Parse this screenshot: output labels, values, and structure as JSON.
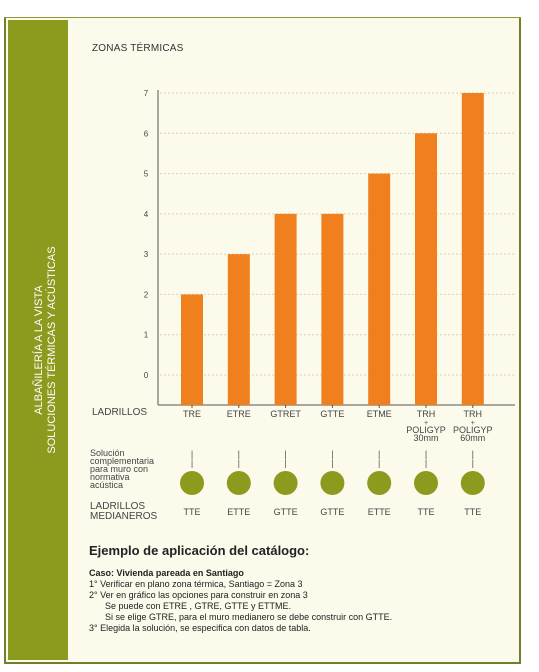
{
  "sidebar": {
    "line1": "ALBAÑILERÍA A LA VISTA",
    "line2": "SOLUCIONES TÉRMICAS Y ACÚSTICAS"
  },
  "chart_data": {
    "type": "bar",
    "title": "ZONAS TÉRMICAS",
    "xlabel": "LADRILLOS",
    "categories": [
      "TRE",
      "ETRE",
      "GTRET",
      "GTTE",
      "ETME",
      "TRH + POLIGYP 30mm",
      "TRH + POLIGYP 60mm"
    ],
    "category_lines": [
      [
        "TRE"
      ],
      [
        "ETRE"
      ],
      [
        "GTRET"
      ],
      [
        "GTTE"
      ],
      [
        "ETME"
      ],
      [
        "TRH",
        "+",
        "POLIGYP",
        "30mm"
      ],
      [
        "TRH",
        "+",
        "POLIGYP",
        "60mm"
      ]
    ],
    "values": [
      2,
      3,
      4,
      4,
      5,
      6,
      7
    ],
    "yticks": [
      0,
      1,
      2,
      3,
      4,
      5,
      6,
      7
    ],
    "ylim": [
      -0.6,
      7.5
    ],
    "grid": true,
    "bar_color": "#f07f1e"
  },
  "complement": {
    "label_lines": [
      "Solución",
      "complementaria",
      "para muro con",
      "normativa",
      "acústica"
    ],
    "marker": "|",
    "dot_color": "#8c9a1e"
  },
  "medianeros": {
    "label_lines": [
      "LADRILLOS",
      "MEDIANEROS"
    ],
    "values": [
      "TTE",
      "ETTE",
      "GTTE",
      "GTTE",
      "ETTE",
      "TTE",
      "TTE"
    ]
  },
  "example": {
    "title": "Ejemplo de aplicación del catálogo:",
    "case": "Caso: Vivienda pareada en Santiago",
    "lines": [
      "1° Verificar en plano zona térmica, Santiago = Zona 3",
      "2° Ver en gráfico las opciones para construir en zona 3",
      "Se puede con ETRE , GTRE, GTTE y ETTME.",
      "Si se elige GTRE, para el muro medianero se debe construir con GTTE.",
      "3° Elegida la solución, se especifica con datos de tabla."
    ]
  }
}
